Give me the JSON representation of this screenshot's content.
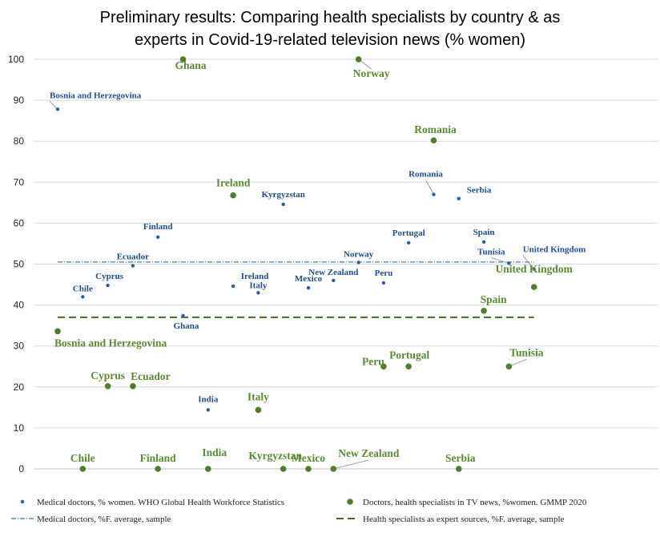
{
  "chart_data": {
    "type": "scatter",
    "title": "Preliminary results: Comparing health specialists by country & as experts in Covid-19-related television news (% women)",
    "title_lines": [
      "Preliminary results: Comparing health specialists by country & as",
      "experts in Covid-19-related television news (% women)"
    ],
    "ylim": [
      0,
      100
    ],
    "yticks": [
      "0",
      "10",
      "20",
      "30",
      "40",
      "50",
      "60",
      "70",
      "80",
      "90",
      "100"
    ],
    "grid": true,
    "legend_position": "bottom",
    "x_slots": 20,
    "colors": {
      "blue": "#2e5c9e",
      "green": "#4f7d2b",
      "blue_line": "#2e6fa8",
      "green_line": "#3d6e22",
      "gridline": "#d9d9d9"
    },
    "series": [
      {
        "name": "Medical doctors, % women.  WHO Global Health Workforce Statistics",
        "points": [
          {
            "label": "Bosnia and Herzegovina",
            "x": 1,
            "y": 87.8
          },
          {
            "label": "Chile",
            "x": 2,
            "y": 42
          },
          {
            "label": "Cyprus",
            "x": 3,
            "y": 44.8
          },
          {
            "label": "Ecuador",
            "x": 4,
            "y": 49.6
          },
          {
            "label": "Finland",
            "x": 5,
            "y": 56.6
          },
          {
            "label": "Ghana",
            "x": 6,
            "y": 37.4
          },
          {
            "label": "Ireland",
            "x": 8,
            "y": 44.6
          },
          {
            "label": "Italy",
            "x": 9,
            "y": 43
          },
          {
            "label": "India",
            "x": 7,
            "y": 14.4
          },
          {
            "label": "Kyrgyzstan",
            "x": 10,
            "y": 64.6
          },
          {
            "label": "Mexico",
            "x": 11,
            "y": 44.2
          },
          {
            "label": "New Zealand",
            "x": 12,
            "y": 46
          },
          {
            "label": "Norway",
            "x": 13,
            "y": 50.4
          },
          {
            "label": "Peru",
            "x": 14,
            "y": 45.4
          },
          {
            "label": "Portugal",
            "x": 15,
            "y": 55.2
          },
          {
            "label": "Romania",
            "x": 16,
            "y": 67
          },
          {
            "label": "Serbia",
            "x": 17,
            "y": 66
          },
          {
            "label": "Spain",
            "x": 18,
            "y": 55.4
          },
          {
            "label": "Tunisia",
            "x": 19,
            "y": 50.2
          },
          {
            "label": "United Kingdom",
            "x": 20,
            "y": 48.8
          }
        ]
      },
      {
        "name": "Doctors, health specialists in TV news, %women. GMMP 2020",
        "points": [
          {
            "label": "Bosnia and Herzegovina",
            "x": 1,
            "y": 33.6
          },
          {
            "label": "Chile",
            "x": 2,
            "y": 0
          },
          {
            "label": "Cyprus",
            "x": 3,
            "y": 20.2
          },
          {
            "label": "Ecuador",
            "x": 4,
            "y": 20.2
          },
          {
            "label": "Finland",
            "x": 5,
            "y": 0
          },
          {
            "label": "Ghana",
            "x": 6,
            "y": 100
          },
          {
            "label": "India",
            "x": 7,
            "y": 0
          },
          {
            "label": "Ireland",
            "x": 8,
            "y": 66.8
          },
          {
            "label": "Italy",
            "x": 9,
            "y": 14.4
          },
          {
            "label": "Kyrgyzstan",
            "x": 10,
            "y": 0
          },
          {
            "label": "Mexico",
            "x": 11,
            "y": 0
          },
          {
            "label": "New Zealand",
            "x": 12,
            "y": 0
          },
          {
            "label": "Norway",
            "x": 13,
            "y": 100
          },
          {
            "label": "Peru",
            "x": 14,
            "y": 25
          },
          {
            "label": "Portugal",
            "x": 15,
            "y": 25
          },
          {
            "label": "Romania",
            "x": 16,
            "y": 80.2
          },
          {
            "label": "Serbia",
            "x": 17,
            "y": 0
          },
          {
            "label": "Spain",
            "x": 18,
            "y": 38.6
          },
          {
            "label": "Tunisia",
            "x": 19,
            "y": 25
          },
          {
            "label": "United Kingdom",
            "x": 20,
            "y": 44.4
          }
        ]
      }
    ],
    "reference_lines": [
      {
        "name": "Medical doctors, %F. average, sample",
        "y": 50.5,
        "style": "dash-dot",
        "color": "blue"
      },
      {
        "name": "Health specialists as expert sources, %F. average, sample",
        "y": 37,
        "style": "dashed",
        "color": "green"
      }
    ]
  }
}
